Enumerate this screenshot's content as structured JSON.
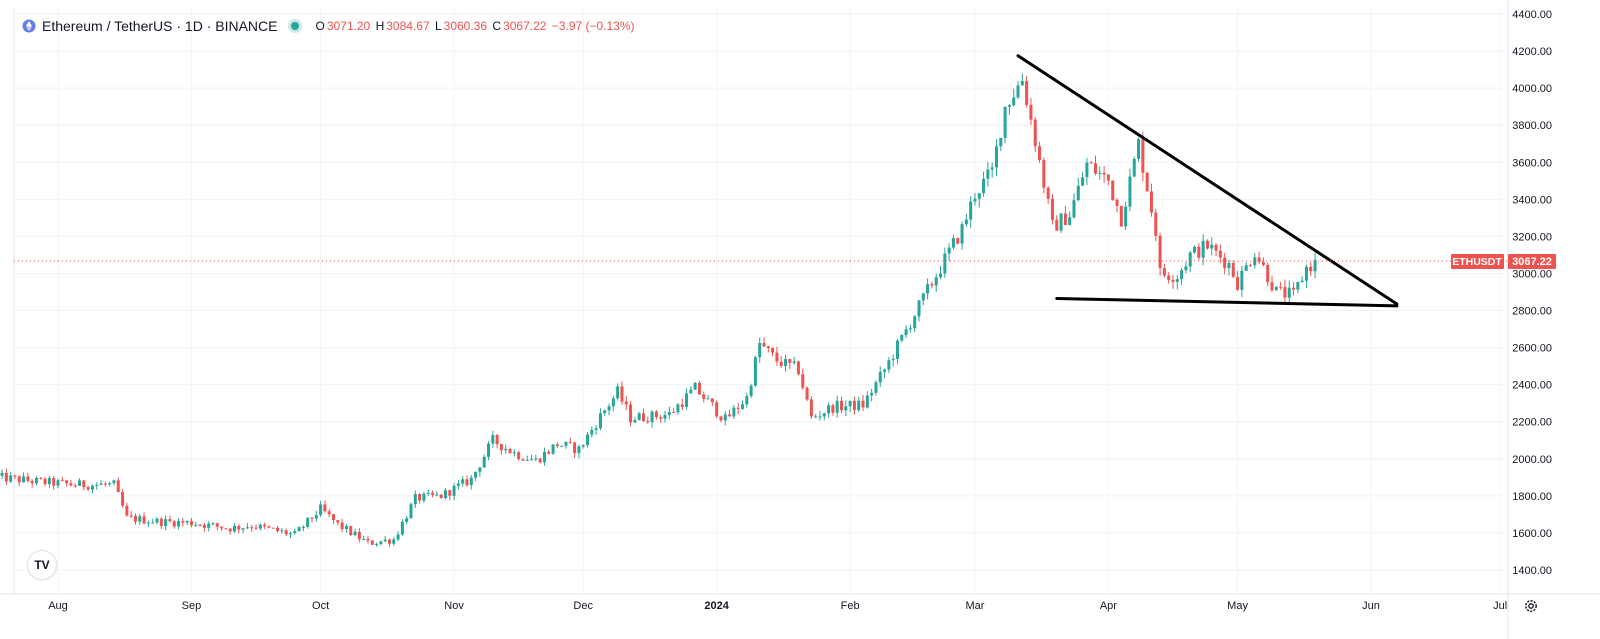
{
  "legend": {
    "title": "Ethereum / TetherUS · 1D · BINANCE",
    "open_key": "O",
    "open": "3071.20",
    "high_key": "H",
    "high": "3084.67",
    "low_key": "L",
    "low": "3060.36",
    "close_key": "C",
    "close": "3067.22",
    "change": "−3.97 (−0.13%)"
  },
  "badge": {
    "label": "ETHUSDT",
    "price": "3067.22"
  },
  "colors": {
    "up": "#26a69a",
    "down": "#ef5350",
    "grid": "#f0f3fa",
    "price_line": "#ef5350",
    "trendline": "#000000",
    "axis_text": "#131722"
  },
  "logo_text": "TV",
  "chart_data": {
    "type": "candlestick",
    "symbol": "ETHUSDT",
    "y_ticks": [
      "4400.00",
      "4200.00",
      "4000.00",
      "3800.00",
      "3600.00",
      "3400.00",
      "3200.00",
      "3000.00",
      "2800.00",
      "2600.00",
      "2400.00",
      "2200.00",
      "2000.00",
      "1800.00",
      "1600.00",
      "1400.00"
    ],
    "y_tick_values": [
      4400,
      4200,
      4000,
      3800,
      3600,
      3400,
      3200,
      3000,
      2800,
      2600,
      2400,
      2200,
      2000,
      1800,
      1600,
      1400
    ],
    "x_ticks": [
      {
        "label": "Aug",
        "date": "2023-08-01",
        "bold": false
      },
      {
        "label": "Sep",
        "date": "2023-09-01",
        "bold": false
      },
      {
        "label": "Oct",
        "date": "2023-10-01",
        "bold": false
      },
      {
        "label": "Nov",
        "date": "2023-11-01",
        "bold": false
      },
      {
        "label": "Dec",
        "date": "2023-12-01",
        "bold": false
      },
      {
        "label": "2024",
        "date": "2024-01-01",
        "bold": true
      },
      {
        "label": "Feb",
        "date": "2024-02-01",
        "bold": false
      },
      {
        "label": "Mar",
        "date": "2024-03-01",
        "bold": false
      },
      {
        "label": "Apr",
        "date": "2024-04-01",
        "bold": false
      },
      {
        "label": "May",
        "date": "2024-05-01",
        "bold": false
      },
      {
        "label": "Jun",
        "date": "2024-06-01",
        "bold": false
      },
      {
        "label": "Jul",
        "date": "2024-07-01",
        "bold": false
      }
    ],
    "current_price": 3067.22,
    "anchors": [
      [
        "2023-07-18",
        1900
      ],
      [
        "2023-07-28",
        1875
      ],
      [
        "2023-08-05",
        1860
      ],
      [
        "2023-08-14",
        1860
      ],
      [
        "2023-08-17",
        1680
      ],
      [
        "2023-08-25",
        1660
      ],
      [
        "2023-09-01",
        1655
      ],
      [
        "2023-09-10",
        1625
      ],
      [
        "2023-09-15",
        1640
      ],
      [
        "2023-09-25",
        1590
      ],
      [
        "2023-10-01",
        1730
      ],
      [
        "2023-10-05",
        1645
      ],
      [
        "2023-10-12",
        1545
      ],
      [
        "2023-10-18",
        1565
      ],
      [
        "2023-10-23",
        1785
      ],
      [
        "2023-10-29",
        1800
      ],
      [
        "2023-11-05",
        1890
      ],
      [
        "2023-11-10",
        2100
      ],
      [
        "2023-11-15",
        2030
      ],
      [
        "2023-11-20",
        1990
      ],
      [
        "2023-11-25",
        2080
      ],
      [
        "2023-11-30",
        2050
      ],
      [
        "2023-12-05",
        2230
      ],
      [
        "2023-12-09",
        2360
      ],
      [
        "2023-12-12",
        2220
      ],
      [
        "2023-12-17",
        2230
      ],
      [
        "2023-12-21",
        2240
      ],
      [
        "2023-12-27",
        2380
      ],
      [
        "2024-01-03",
        2210
      ],
      [
        "2024-01-08",
        2330
      ],
      [
        "2024-01-11",
        2620
      ],
      [
        "2024-01-15",
        2530
      ],
      [
        "2024-01-20",
        2480
      ],
      [
        "2024-01-23",
        2220
      ],
      [
        "2024-01-28",
        2280
      ],
      [
        "2024-02-04",
        2290
      ],
      [
        "2024-02-09",
        2480
      ],
      [
        "2024-02-13",
        2650
      ],
      [
        "2024-02-20",
        2950
      ],
      [
        "2024-02-27",
        3240
      ],
      [
        "2024-03-01",
        3430
      ],
      [
        "2024-03-05",
        3550
      ],
      [
        "2024-03-08",
        3900
      ],
      [
        "2024-03-12",
        4050
      ],
      [
        "2024-03-15",
        3720
      ],
      [
        "2024-03-19",
        3250
      ],
      [
        "2024-03-23",
        3320
      ],
      [
        "2024-03-27",
        3590
      ],
      [
        "2024-04-01",
        3500
      ],
      [
        "2024-04-04",
        3300
      ],
      [
        "2024-04-08",
        3700
      ],
      [
        "2024-04-12",
        3230
      ],
      [
        "2024-04-13",
        3000
      ],
      [
        "2024-04-17",
        2990
      ],
      [
        "2024-04-20",
        3100
      ],
      [
        "2024-04-24",
        3150
      ],
      [
        "2024-04-29",
        3050
      ],
      [
        "2024-05-01",
        2950
      ],
      [
        "2024-05-05",
        3120
      ],
      [
        "2024-05-10",
        2900
      ],
      [
        "2024-05-14",
        2880
      ],
      [
        "2024-05-17",
        3030
      ],
      [
        "2024-05-20",
        3067
      ]
    ],
    "trendlines": [
      {
        "name": "descending-resistance",
        "from": [
          "2024-03-11",
          4175
        ],
        "to": [
          "2024-06-07",
          2835
        ]
      },
      {
        "name": "flat-support",
        "from": [
          "2024-03-20",
          2865
        ],
        "to": [
          "2024-06-07",
          2825
        ]
      }
    ]
  }
}
